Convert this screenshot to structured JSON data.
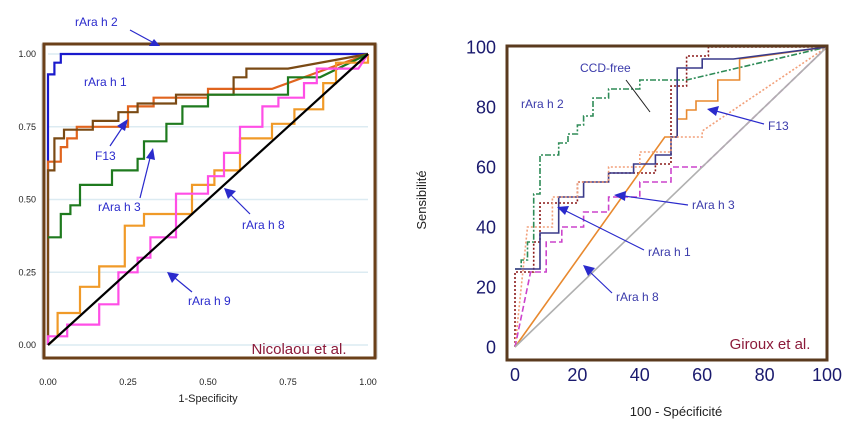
{
  "chart_data": [
    {
      "type": "line",
      "xlabel": "1-Specificity",
      "ylabel": "",
      "xlim": [
        0,
        1
      ],
      "ylim": [
        0,
        1
      ],
      "xticks": [
        "0.00",
        "0.25",
        "0.50",
        "0.75",
        "1.00"
      ],
      "yticks": [
        "0.00",
        "0.25",
        "0.50",
        "0.75",
        "1.00"
      ],
      "grid": true,
      "source_label": "Nicolaou et al.",
      "series": [
        {
          "name": "rAra h 2",
          "color": "#1a1acc",
          "points": [
            [
              0,
              0
            ],
            [
              0,
              0.55
            ],
            [
              0,
              0.93
            ],
            [
              0.02,
              0.93
            ],
            [
              0.02,
              0.97
            ],
            [
              0.04,
              0.97
            ],
            [
              0.04,
              1
            ],
            [
              1,
              1
            ]
          ]
        },
        {
          "name": "rAra h 1",
          "color": "#e0641e",
          "points": [
            [
              0,
              0
            ],
            [
              0,
              0.55
            ],
            [
              0,
              0.63
            ],
            [
              0.04,
              0.63
            ],
            [
              0.04,
              0.68
            ],
            [
              0.06,
              0.68
            ],
            [
              0.06,
              0.71
            ],
            [
              0.09,
              0.71
            ],
            [
              0.09,
              0.75
            ],
            [
              0.25,
              0.75
            ],
            [
              0.25,
              0.82
            ],
            [
              0.33,
              0.82
            ],
            [
              0.33,
              0.85
            ],
            [
              0.5,
              0.85
            ],
            [
              0.5,
              0.88
            ],
            [
              0.7,
              0.88
            ],
            [
              1,
              1
            ]
          ]
        },
        {
          "name": "",
          "color": "#7a4a14",
          "points": [
            [
              0,
              0
            ],
            [
              0,
              0.6
            ],
            [
              0.02,
              0.6
            ],
            [
              0.02,
              0.71
            ],
            [
              0.05,
              0.71
            ],
            [
              0.05,
              0.74
            ],
            [
              0.14,
              0.74
            ],
            [
              0.14,
              0.77
            ],
            [
              0.22,
              0.77
            ],
            [
              0.22,
              0.8
            ],
            [
              0.28,
              0.8
            ],
            [
              0.28,
              0.83
            ],
            [
              0.4,
              0.83
            ],
            [
              0.4,
              0.86
            ],
            [
              0.58,
              0.86
            ],
            [
              0.58,
              0.92
            ],
            [
              0.62,
              0.92
            ],
            [
              0.62,
              0.95
            ],
            [
              0.75,
              0.95
            ],
            [
              1,
              1
            ]
          ]
        },
        {
          "name": "rAra h 3",
          "color": "#1e7a1e",
          "points": [
            [
              0,
              0.37
            ],
            [
              0.04,
              0.37
            ],
            [
              0.04,
              0.45
            ],
            [
              0.07,
              0.45
            ],
            [
              0.07,
              0.48
            ],
            [
              0.1,
              0.48
            ],
            [
              0.1,
              0.55
            ],
            [
              0.2,
              0.55
            ],
            [
              0.2,
              0.6
            ],
            [
              0.28,
              0.6
            ],
            [
              0.28,
              0.64
            ],
            [
              0.3,
              0.64
            ],
            [
              0.3,
              0.7
            ],
            [
              0.37,
              0.7
            ],
            [
              0.37,
              0.76
            ],
            [
              0.42,
              0.76
            ],
            [
              0.42,
              0.82
            ],
            [
              0.5,
              0.82
            ],
            [
              0.5,
              0.86
            ],
            [
              0.75,
              0.86
            ],
            [
              0.75,
              0.92
            ],
            [
              0.85,
              0.92
            ],
            [
              1,
              1
            ]
          ]
        },
        {
          "name": "rAra h 8",
          "color": "#f09a28",
          "points": [
            [
              0,
              0
            ],
            [
              0.03,
              0.03
            ],
            [
              0.03,
              0.11
            ],
            [
              0.1,
              0.11
            ],
            [
              0.1,
              0.2
            ],
            [
              0.16,
              0.2
            ],
            [
              0.16,
              0.27
            ],
            [
              0.24,
              0.27
            ],
            [
              0.24,
              0.41
            ],
            [
              0.3,
              0.41
            ],
            [
              0.3,
              0.45
            ],
            [
              0.45,
              0.45
            ],
            [
              0.45,
              0.55
            ],
            [
              0.52,
              0.55
            ],
            [
              0.52,
              0.6
            ],
            [
              0.6,
              0.6
            ],
            [
              0.6,
              0.71
            ],
            [
              0.7,
              0.71
            ],
            [
              0.7,
              0.76
            ],
            [
              0.77,
              0.76
            ],
            [
              0.77,
              0.81
            ],
            [
              0.86,
              0.81
            ],
            [
              0.86,
              0.9
            ],
            [
              0.9,
              0.9
            ],
            [
              0.9,
              0.97
            ],
            [
              1,
              0.97
            ],
            [
              1,
              1
            ]
          ]
        },
        {
          "name": "rAra h 9",
          "color": "#ff4ee6",
          "points": [
            [
              0,
              0
            ],
            [
              0,
              0.03
            ],
            [
              0.06,
              0.03
            ],
            [
              0.06,
              0.07
            ],
            [
              0.16,
              0.07
            ],
            [
              0.16,
              0.14
            ],
            [
              0.22,
              0.14
            ],
            [
              0.22,
              0.25
            ],
            [
              0.28,
              0.25
            ],
            [
              0.28,
              0.3
            ],
            [
              0.32,
              0.3
            ],
            [
              0.32,
              0.37
            ],
            [
              0.4,
              0.37
            ],
            [
              0.4,
              0.52
            ],
            [
              0.5,
              0.52
            ],
            [
              0.5,
              0.58
            ],
            [
              0.55,
              0.58
            ],
            [
              0.55,
              0.66
            ],
            [
              0.6,
              0.66
            ],
            [
              0.6,
              0.75
            ],
            [
              0.67,
              0.75
            ],
            [
              0.67,
              0.82
            ],
            [
              0.72,
              0.82
            ],
            [
              0.72,
              0.85
            ],
            [
              0.8,
              0.85
            ],
            [
              0.8,
              0.9
            ],
            [
              0.84,
              0.9
            ],
            [
              0.84,
              0.95
            ],
            [
              0.97,
              0.95
            ],
            [
              1,
              1
            ]
          ]
        },
        {
          "name": "",
          "color": "#000000",
          "points": [
            [
              0,
              0
            ],
            [
              1,
              1
            ]
          ]
        }
      ],
      "annotations": [
        {
          "text": "rAra h 2",
          "color": "#2a2acc"
        },
        {
          "text": "rAra h 1",
          "color": "#2a2acc"
        },
        {
          "text": "F13",
          "color": "#2a2acc"
        },
        {
          "text": "rAra h 3",
          "color": "#2a2acc"
        },
        {
          "text": "rAra h 8",
          "color": "#2a2acc"
        },
        {
          "text": "rAra h 9",
          "color": "#2a2acc"
        }
      ]
    },
    {
      "type": "line",
      "xlabel": "100 - Spécificité",
      "ylabel": "Sensibilité",
      "xlim": [
        0,
        100
      ],
      "ylim": [
        0,
        100
      ],
      "xticks": [
        "0",
        "20",
        "40",
        "60",
        "80",
        "100"
      ],
      "yticks": [
        "0",
        "20",
        "40",
        "60",
        "80",
        "100"
      ],
      "grid": false,
      "source_label": "Giroux et al.",
      "series": [
        {
          "name": "CCD-free",
          "color": "#2e8b57",
          "dash": "6 2 2 2",
          "points": [
            [
              0,
              26
            ],
            [
              2,
              26
            ],
            [
              2,
              29
            ],
            [
              4,
              29
            ],
            [
              4,
              35
            ],
            [
              6,
              35
            ],
            [
              6,
              51
            ],
            [
              8,
              51
            ],
            [
              8,
              64
            ],
            [
              14,
              64
            ],
            [
              14,
              68
            ],
            [
              17,
              68
            ],
            [
              17,
              71
            ],
            [
              20,
              71
            ],
            [
              20,
              74
            ],
            [
              22,
              74
            ],
            [
              22,
              77
            ],
            [
              25,
              77
            ],
            [
              25,
              83
            ],
            [
              30,
              83
            ],
            [
              30,
              86
            ],
            [
              40,
              86
            ],
            [
              40,
              89
            ],
            [
              55,
              89
            ],
            [
              100,
              100
            ]
          ]
        },
        {
          "name": "rAra h 2",
          "color": "#8b1a1a",
          "dash": "2 2",
          "points": [
            [
              0,
              0
            ],
            [
              0,
              25
            ],
            [
              6,
              25
            ],
            [
              6,
              35
            ],
            [
              8,
              35
            ],
            [
              8,
              48
            ],
            [
              20,
              48
            ],
            [
              20,
              55
            ],
            [
              30,
              55
            ],
            [
              30,
              58
            ],
            [
              45,
              58
            ],
            [
              45,
              61
            ],
            [
              50,
              61
            ],
            [
              50,
              87
            ],
            [
              55,
              87
            ],
            [
              55,
              97
            ],
            [
              62,
              97
            ],
            [
              62,
              100
            ],
            [
              100,
              100
            ]
          ]
        },
        {
          "name": "F13",
          "color": "#e8892f",
          "dash": "",
          "points": [
            [
              0,
              0
            ],
            [
              48,
              70
            ],
            [
              52,
              70
            ],
            [
              52,
              76
            ],
            [
              55,
              76
            ],
            [
              55,
              79
            ],
            [
              58,
              79
            ],
            [
              58,
              82
            ],
            [
              65,
              82
            ],
            [
              65,
              89
            ],
            [
              72,
              89
            ],
            [
              72,
              96
            ],
            [
              100,
              100
            ]
          ]
        },
        {
          "name": "rAra h 3",
          "color": "#3a3a8a",
          "dash": "",
          "points": [
            [
              0,
              26
            ],
            [
              8,
              26
            ],
            [
              8,
              38
            ],
            [
              14,
              38
            ],
            [
              14,
              50
            ],
            [
              22,
              50
            ],
            [
              22,
              55
            ],
            [
              30,
              55
            ],
            [
              30,
              58
            ],
            [
              38,
              58
            ],
            [
              38,
              61
            ],
            [
              45,
              61
            ],
            [
              45,
              64
            ],
            [
              50,
              64
            ],
            [
              50,
              70
            ],
            [
              52,
              70
            ],
            [
              52,
              93
            ],
            [
              60,
              93
            ],
            [
              60,
              96
            ],
            [
              70,
              96
            ],
            [
              100,
              100
            ]
          ]
        },
        {
          "name": "rAra h 1",
          "color": "#f2a07a",
          "dash": "2 2",
          "points": [
            [
              0,
              0
            ],
            [
              4,
              40
            ],
            [
              12,
              40
            ],
            [
              12,
              50
            ],
            [
              20,
              50
            ],
            [
              20,
              55
            ],
            [
              30,
              55
            ],
            [
              30,
              60
            ],
            [
              40,
              60
            ],
            [
              40,
              65
            ],
            [
              50,
              65
            ],
            [
              50,
              70
            ],
            [
              60,
              70
            ],
            [
              60,
              72
            ],
            [
              100,
              100
            ]
          ]
        },
        {
          "name": "rAra h 8",
          "color": "#cc44cc",
          "dash": "6 3",
          "points": [
            [
              0,
              0
            ],
            [
              5,
              25
            ],
            [
              10,
              25
            ],
            [
              10,
              35
            ],
            [
              15,
              35
            ],
            [
              15,
              40
            ],
            [
              22,
              40
            ],
            [
              22,
              45
            ],
            [
              30,
              45
            ],
            [
              30,
              50
            ],
            [
              40,
              50
            ],
            [
              40,
              55
            ],
            [
              50,
              55
            ],
            [
              50,
              60
            ],
            [
              60,
              60
            ],
            [
              100,
              100
            ]
          ]
        },
        {
          "name": "",
          "color": "#b0b0b0",
          "dash": "",
          "points": [
            [
              0,
              0
            ],
            [
              100,
              100
            ]
          ]
        }
      ],
      "annotations": [
        {
          "text": "CCD-free",
          "color": "#3a3aaa"
        },
        {
          "text": "rAra h 2",
          "color": "#3a3aaa"
        },
        {
          "text": "F13",
          "color": "#3a3aaa"
        },
        {
          "text": "rAra h 3",
          "color": "#3a3aaa"
        },
        {
          "text": "rAra h 1",
          "color": "#3a3aaa"
        },
        {
          "text": "rAra h 8",
          "color": "#3a3aaa"
        }
      ]
    }
  ]
}
